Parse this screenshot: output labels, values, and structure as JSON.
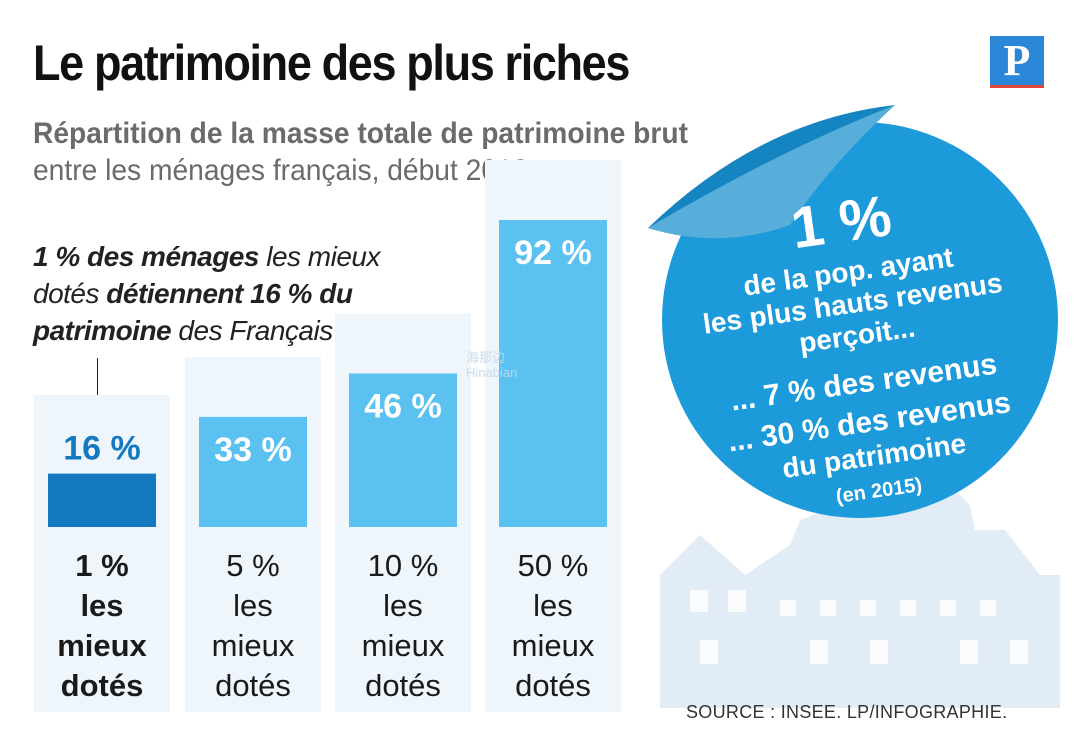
{
  "header": {
    "title": "Le patrimoine des plus riches",
    "subtitle_line1": "Répartition de la masse totale de patrimoine brut",
    "subtitle_line2": "entre les ménages français, début 2018",
    "logo_letter": "P"
  },
  "note": {
    "part1": "1 % des ménages",
    "part2": " les mieux dotés ",
    "part3": "détiennent 16 % du patrimoine",
    "part4": " des Français"
  },
  "badge": {
    "big": "1 %",
    "line1": "de la pop. ayant",
    "line2": "les plus hauts revenus",
    "line3": "perçoit...",
    "line4": "... 7 % des revenus",
    "line5": "... 30 % des revenus",
    "line6": "du patrimoine",
    "line7": "(en 2015)"
  },
  "watermark": {
    "cn": "海那边",
    "en": "Hinabian"
  },
  "source": "SOURCE : INSEE.   LP/INFOGRAPHIE.",
  "colors": {
    "highlight": "#1479c1",
    "bar": "#5bc1f1",
    "column_bg": "#eef6fc",
    "badge": "#1d9ad9"
  },
  "chart_data": {
    "type": "bar",
    "title": "Le patrimoine des plus riches",
    "categories": [
      [
        "1 %",
        "les",
        "mieux",
        "dotés"
      ],
      [
        "5 %",
        "les",
        "mieux",
        "dotés"
      ],
      [
        "10 %",
        "les",
        "mieux",
        "dotés"
      ],
      [
        "50 %",
        "les",
        "mieux",
        "dotés"
      ]
    ],
    "values": [
      16,
      33,
      46,
      92
    ],
    "value_labels": [
      "16 %",
      "33 %",
      "46 %",
      "92 %"
    ],
    "unit": "%",
    "ylim": [
      0,
      92
    ],
    "grid": false,
    "highlight_index": 0
  }
}
